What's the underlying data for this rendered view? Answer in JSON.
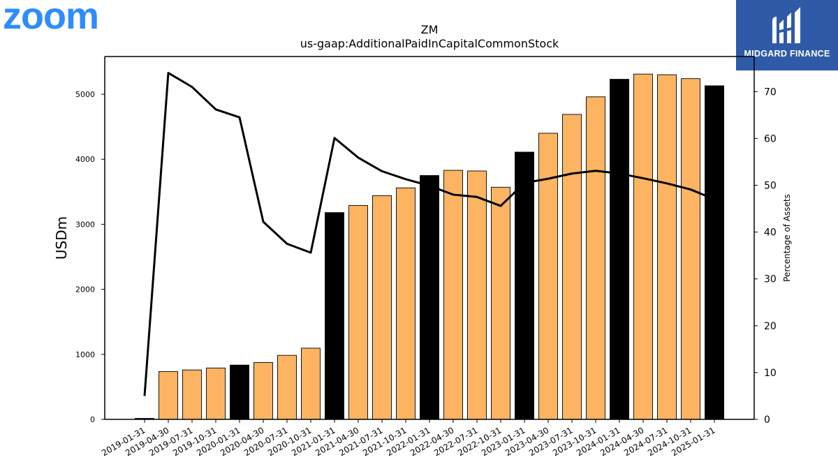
{
  "logos": {
    "left": "zoom",
    "right": "MIDGARD FINANCE"
  },
  "chart_data": {
    "type": "bar",
    "title": "ZM",
    "subtitle": "us-gaap:AdditionalPaidInCapitalCommonStock",
    "ylabel": "USDm",
    "y2label": "Percentage of Assets",
    "ylim": [
      0,
      5580
    ],
    "y2lim": [
      0,
      77.5
    ],
    "yticks": [
      0,
      1000,
      2000,
      3000,
      4000,
      5000
    ],
    "y2ticks": [
      0,
      10,
      20,
      30,
      40,
      50,
      60,
      70
    ],
    "categories": [
      "2019-01-31",
      "2019-04-30",
      "2019-07-31",
      "2019-10-31",
      "2020-01-31",
      "2020-04-30",
      "2020-07-31",
      "2020-10-31",
      "2021-01-31",
      "2021-04-30",
      "2021-07-31",
      "2021-10-31",
      "2022-01-31",
      "2022-04-30",
      "2022-07-31",
      "2022-10-31",
      "2023-01-31",
      "2023-04-30",
      "2023-07-31",
      "2023-10-31",
      "2024-01-31",
      "2024-04-30",
      "2024-07-31",
      "2024-10-31",
      "2025-01-31"
    ],
    "series": [
      {
        "type": "bar",
        "values": [
          15,
          735,
          760,
          790,
          835,
          875,
          985,
          1095,
          3180,
          3290,
          3440,
          3560,
          3750,
          3830,
          3820,
          3570,
          4110,
          4400,
          4690,
          4960,
          5230,
          5310,
          5300,
          5240,
          5130
        ],
        "fiscal_year_end": [
          true,
          false,
          false,
          false,
          true,
          false,
          false,
          false,
          true,
          false,
          false,
          false,
          true,
          false,
          false,
          false,
          true,
          false,
          false,
          false,
          true,
          false,
          false,
          false,
          true
        ],
        "color_quarter": "#fdb462",
        "color_year_end": "#000000"
      },
      {
        "type": "line",
        "axis": "y2",
        "values": [
          5.0,
          74.0,
          71.0,
          66.2,
          64.5,
          42.2,
          37.5,
          35.6,
          60.1,
          55.9,
          53.0,
          51.3,
          49.9,
          48.0,
          47.5,
          45.6,
          50.5,
          51.4,
          52.5,
          53.1,
          52.5,
          51.5,
          50.4,
          49.1,
          47.0
        ],
        "color": "#000000"
      }
    ]
  }
}
